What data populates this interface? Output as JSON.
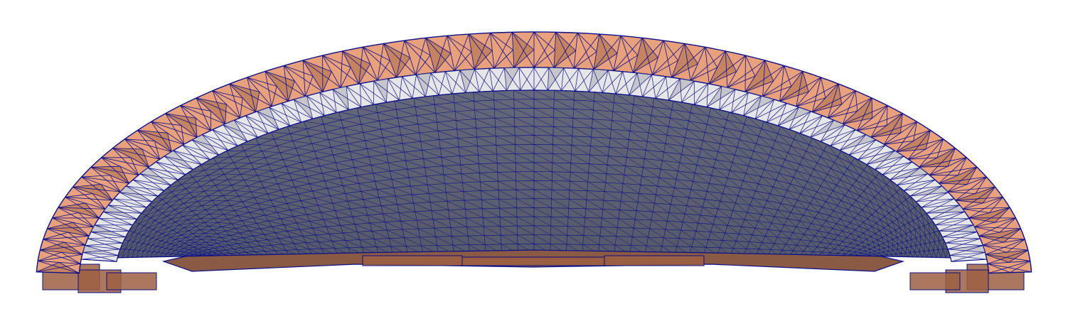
{
  "scene": {
    "description_visible": "",
    "colors": {
      "background": "#ffffff",
      "outer_shell": "#e9a07c",
      "outer_shell_shadow": "#9c6043",
      "middle_shell": "#e6e6e9",
      "middle_shell_shadow": "#a6a6ab",
      "inner_surface": "#55596a",
      "inner_rim": "#8a5a44",
      "wireframe": "#0a0f8a"
    },
    "layers": [
      {
        "id": "outer-shell",
        "mesh": "coarse-tetrahedral"
      },
      {
        "id": "middle-shell",
        "mesh": "medium-tetrahedral"
      },
      {
        "id": "inner-surface",
        "mesh": "fine-triangulated"
      }
    ]
  }
}
